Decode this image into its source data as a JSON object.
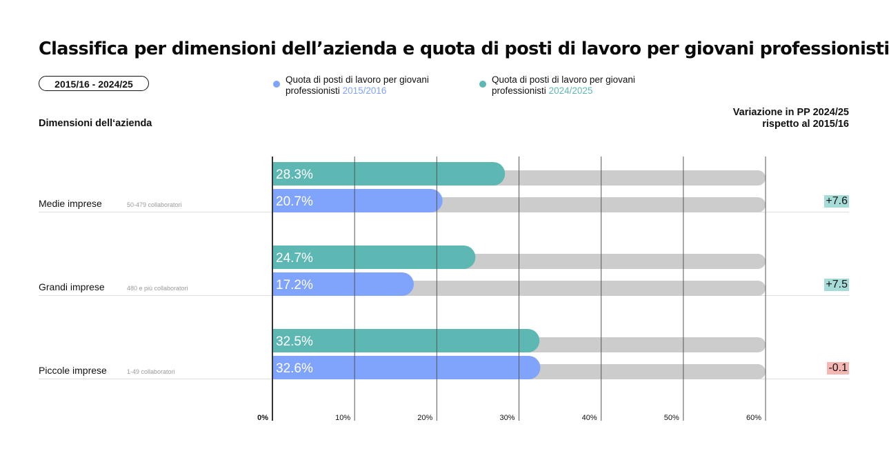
{
  "title": "Classifica per dimensioni dell’azienda e quota di posti di lavoro per giovani professionisti",
  "period_pill": "2015/16 - 2024/25",
  "legend": [
    {
      "text": "Quota di posti di lavoro per giovani",
      "text2": "professionisti",
      "year": "2015/2016",
      "color": "#80a3fc"
    },
    {
      "text": "Quota di posti di lavoro per giovani",
      "text2": "professionisti",
      "year": "2024/2025",
      "color": "#5db8b4"
    }
  ],
  "column_header_left": "Dimensioni dell‘azienda",
  "column_header_right": [
    "Variazione in PP 2024/25",
    "rispetto al 2015/16"
  ],
  "colors": {
    "series_2015": "#80a3fc",
    "series_2024": "#5db8b4",
    "track": "#cccccc",
    "delta_positive_bg": "#a6dcd8",
    "delta_negative_bg": "#f5b7b3",
    "gridline": "#555555",
    "separator": "#dddddd"
  },
  "chart_data": {
    "type": "bar",
    "orientation": "horizontal",
    "title": "Classifica per dimensioni dell’azienda e quota di posti di lavoro per giovani professionisti",
    "xlabel": "",
    "ylabel": "Dimensioni dell‘azienda",
    "xlim": [
      0,
      60
    ],
    "xticks": [
      0,
      10,
      20,
      30,
      40,
      50,
      60
    ],
    "xtick_labels": [
      "0%",
      "10%",
      "20%",
      "30%",
      "40%",
      "50%",
      "60%"
    ],
    "grid": true,
    "legend_position": "top",
    "categories": [
      "Medie imprese",
      "Grandi imprese",
      "Piccole imprese"
    ],
    "category_sublabels": [
      "50-479 collaboratori",
      "480 e più collaboratori",
      "1-49 collaboratori"
    ],
    "series": [
      {
        "name": "Quota di posti di lavoro per giovani professionisti 2024/2025",
        "values": [
          28.3,
          24.7,
          32.5
        ],
        "labels": [
          "28.3%",
          "24.7%",
          "32.5%"
        ]
      },
      {
        "name": "Quota di posti di lavoro per giovani professionisti 2015/2016",
        "values": [
          20.7,
          17.2,
          32.6
        ],
        "labels": [
          "20.7%",
          "17.2%",
          "32.6%"
        ]
      }
    ],
    "change_pp": {
      "header": "Variazione in PP 2024/25 rispetto al 2015/16",
      "values": [
        7.6,
        7.5,
        -0.1
      ],
      "labels": [
        "+7.6",
        "+7.5",
        "-0.1"
      ]
    }
  }
}
